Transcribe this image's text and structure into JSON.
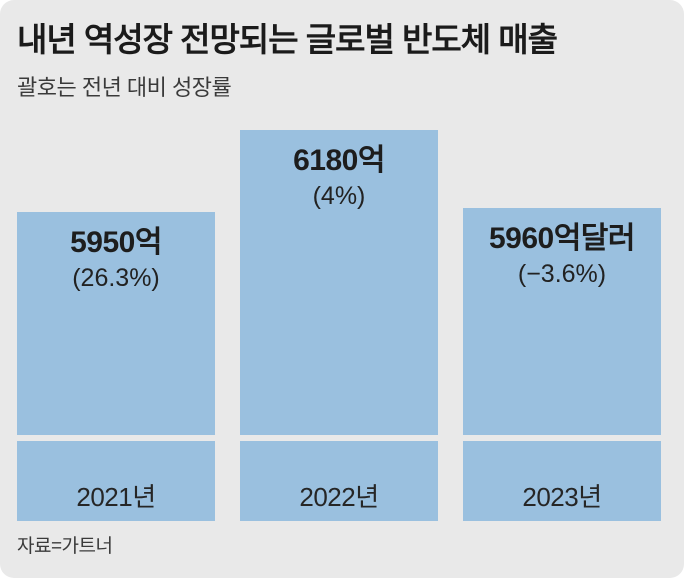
{
  "panel": {
    "title": "내년 역성장 전망되는 글로벌 반도체 매출",
    "subtitle": "괄호는 전년 대비 성장률",
    "source": "자료=가트너"
  },
  "colors": {
    "background": "#E9E9E9",
    "bar": "#9AC0DF",
    "title_text": "#1B1B1B",
    "label_text": "#262626"
  },
  "chart_data": {
    "type": "bar",
    "title": "내년 역성장 전망되는 글로벌 반도체 매출",
    "subtitle": "괄호는 전년 대비 성장률",
    "source": "자료=가트너",
    "categories": [
      "2021년",
      "2022년",
      "2023년"
    ],
    "values": [
      5950,
      6180,
      5960
    ],
    "unit": "억달러",
    "value_labels": [
      "5950억",
      "6180억",
      "5960억달러"
    ],
    "growth_labels": [
      "(26.3%)",
      "(4%)",
      "(−3.6%)"
    ],
    "growth_pct_yoy": [
      26.3,
      4,
      -3.6
    ],
    "legend": "none",
    "grid": "off",
    "baseline": "truncated (bars do not start at zero)",
    "orientation": "vertical"
  }
}
